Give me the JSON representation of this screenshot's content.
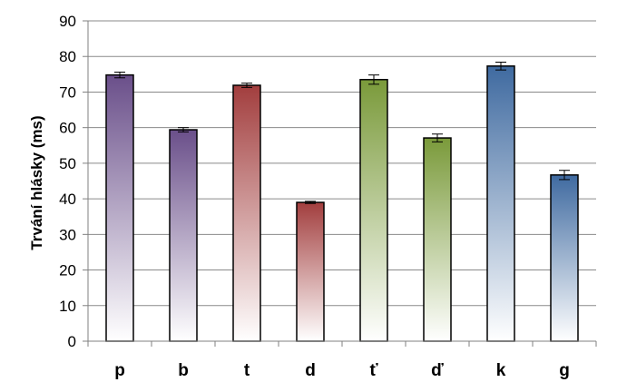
{
  "chart_data": {
    "type": "bar",
    "title": "",
    "xlabel": "",
    "ylabel": "Trvání hlásky (ms)",
    "ylim": [
      0,
      90
    ],
    "yticks": [
      0,
      10,
      20,
      30,
      40,
      50,
      60,
      70,
      80,
      90
    ],
    "ytick_labels": [
      "0",
      "10",
      "20",
      "30",
      "40",
      "50",
      "60",
      "70",
      "80",
      "90"
    ],
    "grid": true,
    "categories": [
      "p",
      "b",
      "t",
      "d",
      "ť",
      "ď",
      "k",
      "g"
    ],
    "values": [
      74.8,
      59.4,
      71.9,
      39.0,
      73.5,
      57.1,
      77.3,
      46.7
    ],
    "errors": [
      0.8,
      0.6,
      0.6,
      0.3,
      1.3,
      1.1,
      1.1,
      1.3
    ],
    "colors": [
      "#6a4f8a",
      "#6a4f8a",
      "#a23e3e",
      "#a23e3e",
      "#7a9a3a",
      "#7a9a3a",
      "#3f6aa0",
      "#3f6aa0"
    ]
  }
}
